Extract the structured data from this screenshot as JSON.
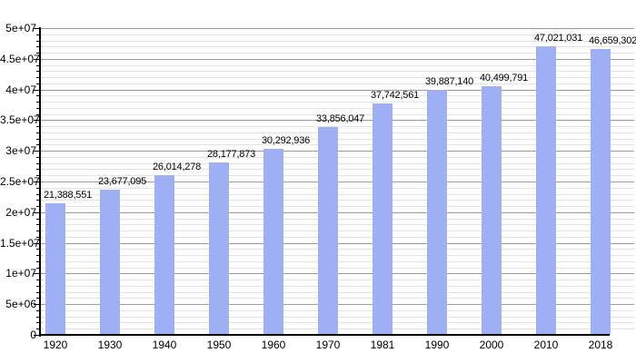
{
  "chart_data": {
    "type": "bar",
    "title": "",
    "xlabel": "",
    "ylabel": "",
    "categories": [
      "1920",
      "1930",
      "1940",
      "1950",
      "1960",
      "1970",
      "1981",
      "1990",
      "2000",
      "2010",
      "2018"
    ],
    "values": [
      21388551,
      23677095,
      26014278,
      28177873,
      30292936,
      33856047,
      37742561,
      39887140,
      40499791,
      47021031,
      46659302
    ],
    "value_labels": [
      "21,388,551",
      "23,677,095",
      "26,014,278",
      "28,177,873",
      "30,292,936",
      "33,856,047",
      "37,742,561",
      "39,887,140",
      "40,499,791",
      "47,021,031",
      "46,659,302"
    ],
    "ylim": [
      0,
      50000000
    ],
    "y_major_step": 5000000,
    "y_minor_step": 1000000,
    "y_tick_labels": [
      "0",
      "5e+06",
      "1e+07",
      "1.5e+07",
      "2e+07",
      "2.5e+07",
      "3e+07",
      "3.5e+07",
      "4e+07",
      "4.5e+07",
      "5e+07"
    ],
    "grid": "major and minor horizontal gridlines",
    "legend": "none",
    "colors": {
      "bar_fill": "#9eaff4",
      "grid_major": "#9c9c9c",
      "grid_minor": "#e4e4e4",
      "axis": "#000000",
      "text": "#000000",
      "background": "#ffffff"
    }
  }
}
